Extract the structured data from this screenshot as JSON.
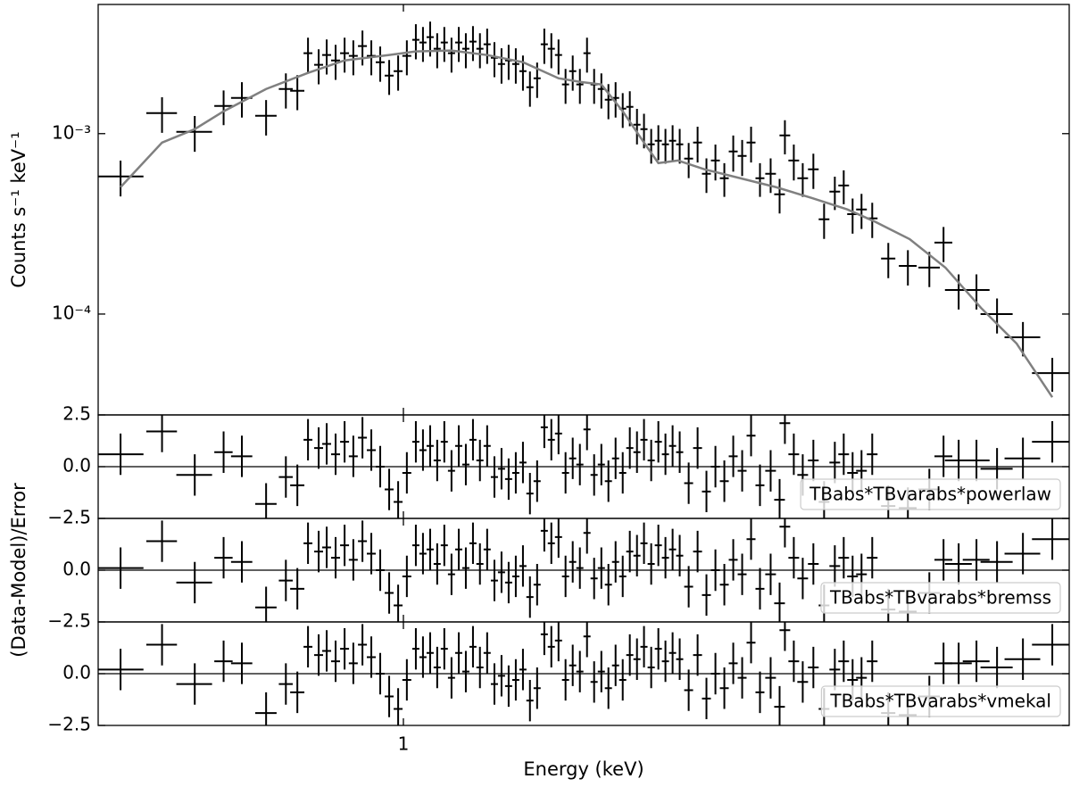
{
  "chart_data": [
    {
      "type": "errorbar",
      "xlog": true,
      "ylog": true,
      "ylabel": "Counts s⁻¹ keV⁻¹",
      "xlim": [
        0.348,
        10
      ],
      "ylim": [
        2.76e-05,
        0.0052
      ],
      "yticks": [
        {
          "value": 0.001,
          "label": "10⁻³"
        },
        {
          "value": 0.0001,
          "label": "10⁻⁴"
        }
      ],
      "color": "#000000",
      "x": [
        0.376,
        0.434,
        0.486,
        0.537,
        0.572,
        0.622,
        0.666,
        0.693,
        0.719,
        0.746,
        0.767,
        0.791,
        0.816,
        0.841,
        0.868,
        0.895,
        0.923,
        0.952,
        0.982,
        1.012,
        1.044,
        1.07,
        1.097,
        1.124,
        1.152,
        1.181,
        1.211,
        1.241,
        1.272,
        1.303,
        1.336,
        1.37,
        1.404,
        1.439,
        1.475,
        1.512,
        1.549,
        1.588,
        1.628,
        1.668,
        1.71,
        1.752,
        1.796,
        1.841,
        1.887,
        1.934,
        1.983,
        2.032,
        2.083,
        2.135,
        2.188,
        2.243,
        2.298,
        2.356,
        2.415,
        2.475,
        2.537,
        2.6,
        2.682,
        2.766,
        2.852,
        2.942,
        3.034,
        3.129,
        3.227,
        3.328,
        3.432,
        3.561,
        3.673,
        3.741,
        3.858,
        3.979,
        4.128,
        4.284,
        4.446,
        4.585,
        4.728,
        4.876,
        5.06,
        5.349,
        5.724,
        6.165,
        6.475,
        6.823,
        7.256,
        7.791,
        8.521,
        9.432
      ],
      "xerr": [
        0.031,
        0.023,
        0.03,
        0.017,
        0.021,
        0.023,
        0.016,
        0.017,
        0.011,
        0.0115,
        0.0118,
        0.0122,
        0.0126,
        0.013,
        0.0134,
        0.0138,
        0.0142,
        0.0147,
        0.0151,
        0.0156,
        0.0128,
        0.0132,
        0.0135,
        0.0138,
        0.0142,
        0.0145,
        0.0149,
        0.0153,
        0.0156,
        0.016,
        0.0164,
        0.0169,
        0.0173,
        0.0177,
        0.0181,
        0.0186,
        0.0191,
        0.0195,
        0.02,
        0.0205,
        0.021,
        0.0215,
        0.0221,
        0.0226,
        0.0232,
        0.0238,
        0.0244,
        0.025,
        0.0256,
        0.0263,
        0.0269,
        0.0276,
        0.0283,
        0.029,
        0.0297,
        0.0304,
        0.0312,
        0.032,
        0.0413,
        0.0426,
        0.0439,
        0.0453,
        0.0467,
        0.0482,
        0.0497,
        0.0513,
        0.0529,
        0.0659,
        0.068,
        0.0692,
        0.0714,
        0.0736,
        0.0764,
        0.0793,
        0.0823,
        0.0848,
        0.0875,
        0.0902,
        0.0936,
        0.132,
        0.176,
        0.228,
        0.2,
        0.316,
        0.336,
        0.432,
        0.525,
        0.64
      ],
      "values": [
        0.000579,
        0.0013,
        0.001023,
        0.001424,
        0.001578,
        0.001256,
        0.001768,
        0.001728,
        0.00279,
        0.002406,
        0.002727,
        0.002546,
        0.00279,
        0.002696,
        0.003056,
        0.002696,
        0.002489,
        0.002098,
        0.002221,
        0.002696,
        0.00331,
        0.003199,
        0.003425,
        0.002953,
        0.003199,
        0.00279,
        0.003199,
        0.002953,
        0.003236,
        0.002953,
        0.003126,
        0.002635,
        0.002433,
        0.002546,
        0.002433,
        0.002221,
        0.001809,
        0.002027,
        0.003126,
        0.002953,
        0.002727,
        0.001873,
        0.002221,
        0.001873,
        0.00279,
        0.001873,
        0.001768,
        0.001542,
        0.001578,
        0.001376,
        0.001408,
        0.001121,
        0.001059,
        0.000872,
        0.000913,
        0.000872,
        0.000913,
        0.000872,
        0.000727,
        0.000892,
        0.000599,
        0.00071,
        0.000566,
        0.000796,
        0.000752,
        0.000892,
        0.000566,
        0.000599,
        0.000461,
        0.000977,
        0.00071,
        0.000566,
        0.000634,
        0.000335,
        0.000477,
        0.000516,
        0.000358,
        0.00038,
        0.000339,
        0.000203,
        0.000185,
        0.000181,
        0.000249,
        0.000136,
        0.000136,
        0.0001,
        7.43e-05,
        4.71e-05
      ],
      "yerr": [
        0.00013,
        0.00029,
        0.00023,
        0.00031,
        0.00035,
        0.00028,
        0.00039,
        0.00038,
        0.00061,
        0.00053,
        0.0006,
        0.00056,
        0.00061,
        0.00059,
        0.00067,
        0.00059,
        0.00055,
        0.00046,
        0.00049,
        0.00059,
        0.00073,
        0.0007,
        0.00075,
        0.00065,
        0.0007,
        0.00061,
        0.0007,
        0.00065,
        0.00071,
        0.00065,
        0.00069,
        0.00058,
        0.00054,
        0.00056,
        0.00054,
        0.00049,
        0.0004,
        0.00045,
        0.00069,
        0.00065,
        0.0006,
        0.00041,
        0.00049,
        0.00041,
        0.00061,
        0.00041,
        0.00039,
        0.00034,
        0.00035,
        0.0003,
        0.00031,
        0.00025,
        0.00023,
        0.00019,
        0.0002,
        0.00019,
        0.0002,
        0.00019,
        0.00016,
        0.0002,
        0.00013,
        0.00016,
        0.00012,
        0.00018,
        0.00017,
        0.0002,
        0.00012,
        0.00013,
        0.0001,
        0.00021,
        0.00016,
        0.00012,
        0.00014,
        7.4e-05,
        0.0001,
        0.00011,
        7.9e-05,
        8.4e-05,
        7.5e-05,
        4.5e-05,
        4.1e-05,
        4e-05,
        5.5e-05,
        3e-05,
        3e-05,
        2.2e-05,
        1.6e-05,
        1e-05
      ],
      "model": {
        "color": "#808080",
        "x": [
          0.376,
          0.434,
          0.486,
          0.537,
          0.622,
          0.719,
          0.816,
          0.952,
          1.044,
          1.181,
          1.336,
          1.512,
          1.71,
          1.841,
          1.983,
          2.135,
          2.298,
          2.415,
          2.584,
          2.835,
          3.207,
          3.628,
          4.103,
          4.642,
          5.092,
          5.76,
          6.516,
          7.369,
          8.337,
          9.432
        ],
        "values": [
          0.000505,
          0.000892,
          0.001059,
          0.00133,
          0.001768,
          0.002171,
          0.002546,
          0.002727,
          0.002854,
          0.002887,
          0.002727,
          0.002489,
          0.002027,
          0.001937,
          0.001873,
          0.00133,
          0.000892,
          0.000687,
          0.00071,
          0.000634,
          0.000566,
          0.000505,
          0.00044,
          0.00038,
          0.000327,
          0.00026,
          0.000181,
          0.0001083,
          6.86e-05,
          3.46e-05
        ]
      }
    },
    {
      "type": "errorbar",
      "ylabel": "(Data-Model)/Error",
      "legend": "TBabs*TBvarabs*powerlaw",
      "legend_position": "lower right",
      "xlim": [
        0.348,
        10
      ],
      "ylim": [
        -2.5,
        2.5
      ],
      "hline": 0,
      "color": "#000000",
      "yticks": [
        {
          "value": -2.5,
          "label": "−2.5"
        },
        {
          "value": 0,
          "label": "0.0"
        },
        2.5
      ],
      "yerr": 1,
      "values": [
        0.6,
        1.7,
        -0.4,
        0.7,
        0.5,
        -1.8,
        -0.5,
        -0.9,
        1.3,
        0.9,
        1.1,
        0.6,
        1.2,
        0.5,
        1.4,
        0.8,
        0.0,
        -1.1,
        -1.7,
        -0.3,
        1.2,
        0.8,
        1.0,
        0.3,
        1.2,
        -0.2,
        1.0,
        0.1,
        1.3,
        0.3,
        1.0,
        -0.5,
        -0.1,
        -0.6,
        -0.3,
        0.2,
        -1.3,
        -0.7,
        1.9,
        1.3,
        1.6,
        -0.3,
        0.4,
        0.1,
        1.8,
        -0.4,
        0.1,
        -0.7,
        0.4,
        -0.3,
        0.9,
        0.7,
        1.3,
        0.3,
        1.2,
        0.6,
        1.0,
        0.7,
        -0.8,
        0.9,
        -1.2,
        0.0,
        -0.7,
        0.5,
        -0.2,
        1.5,
        -0.9,
        -0.2,
        -1.6,
        2.1,
        0.6,
        -0.4,
        0.3,
        -1.7,
        0.2,
        0.6,
        -0.3,
        -0.2,
        0.6,
        -1.9,
        -2.0,
        -1.1,
        0.5,
        0.3,
        0.3,
        -0.1,
        0.4,
        1.2
      ]
    },
    {
      "type": "errorbar",
      "legend": "TBabs*TBvarabs*bremss",
      "legend_position": "lower right",
      "xlim": [
        0.348,
        10
      ],
      "ylim": [
        -2.5,
        2.5
      ],
      "hline": 0,
      "color": "#000000",
      "yticks": [
        {
          "value": -2.5,
          "label": "−2.5"
        },
        {
          "value": 0,
          "label": "0.0"
        }
      ],
      "yerr": 1,
      "values": [
        0.1,
        1.4,
        -0.6,
        0.6,
        0.4,
        -1.8,
        -0.5,
        -0.9,
        1.3,
        0.9,
        1.1,
        0.6,
        1.2,
        0.5,
        1.4,
        0.8,
        0.0,
        -1.1,
        -1.7,
        -0.3,
        1.2,
        0.8,
        1.0,
        0.3,
        1.2,
        -0.2,
        1.0,
        0.1,
        1.3,
        0.3,
        1.0,
        -0.5,
        -0.1,
        -0.6,
        -0.3,
        0.2,
        -1.3,
        -0.7,
        1.9,
        1.3,
        1.6,
        -0.3,
        0.4,
        0.1,
        1.8,
        -0.4,
        0.1,
        -0.7,
        0.4,
        -0.3,
        0.9,
        0.7,
        1.3,
        0.3,
        1.2,
        0.6,
        1.0,
        0.7,
        -0.8,
        0.9,
        -1.2,
        0.0,
        -0.7,
        0.5,
        -0.2,
        1.5,
        -0.9,
        -0.2,
        -1.6,
        2.1,
        0.6,
        -0.4,
        0.3,
        -1.7,
        0.2,
        0.6,
        -0.3,
        -0.2,
        0.6,
        -1.9,
        -2.0,
        -1.1,
        0.5,
        0.3,
        0.5,
        0.4,
        0.8,
        1.5
      ]
    },
    {
      "type": "errorbar",
      "legend": "TBabs*TBvarabs*vmekal",
      "legend_position": "lower right",
      "xlabel": "Energy (keV)",
      "xticks": [
        1
      ],
      "xlim": [
        0.348,
        10
      ],
      "ylim": [
        -2.5,
        2.5
      ],
      "hline": 0,
      "color": "#000000",
      "yticks": [
        {
          "value": -2.5,
          "label": "−2.5"
        },
        {
          "value": 0,
          "label": "0.0"
        }
      ],
      "yerr": 1,
      "values": [
        0.2,
        1.4,
        -0.5,
        0.6,
        0.5,
        -1.9,
        -0.5,
        -0.9,
        1.3,
        0.9,
        1.1,
        0.6,
        1.2,
        0.5,
        1.4,
        0.8,
        0.0,
        -1.1,
        -1.7,
        -0.3,
        1.2,
        0.8,
        1.0,
        0.3,
        1.2,
        -0.2,
        1.0,
        0.1,
        1.3,
        0.3,
        1.0,
        -0.5,
        -0.1,
        -0.6,
        -0.3,
        0.2,
        -1.3,
        -0.7,
        1.9,
        1.3,
        1.6,
        -0.3,
        0.4,
        0.1,
        1.8,
        -0.4,
        0.1,
        -0.7,
        0.4,
        -0.3,
        0.9,
        0.7,
        1.3,
        0.3,
        1.2,
        0.6,
        1.0,
        0.7,
        -0.8,
        0.9,
        -1.2,
        0.0,
        -0.7,
        0.5,
        -0.2,
        1.5,
        -0.9,
        -0.2,
        -1.6,
        2.1,
        0.6,
        -0.4,
        0.3,
        -1.7,
        0.2,
        0.6,
        -0.3,
        -0.2,
        0.6,
        -1.9,
        -2.0,
        -1.1,
        0.5,
        0.5,
        0.6,
        0.3,
        0.7,
        1.4
      ]
    }
  ]
}
